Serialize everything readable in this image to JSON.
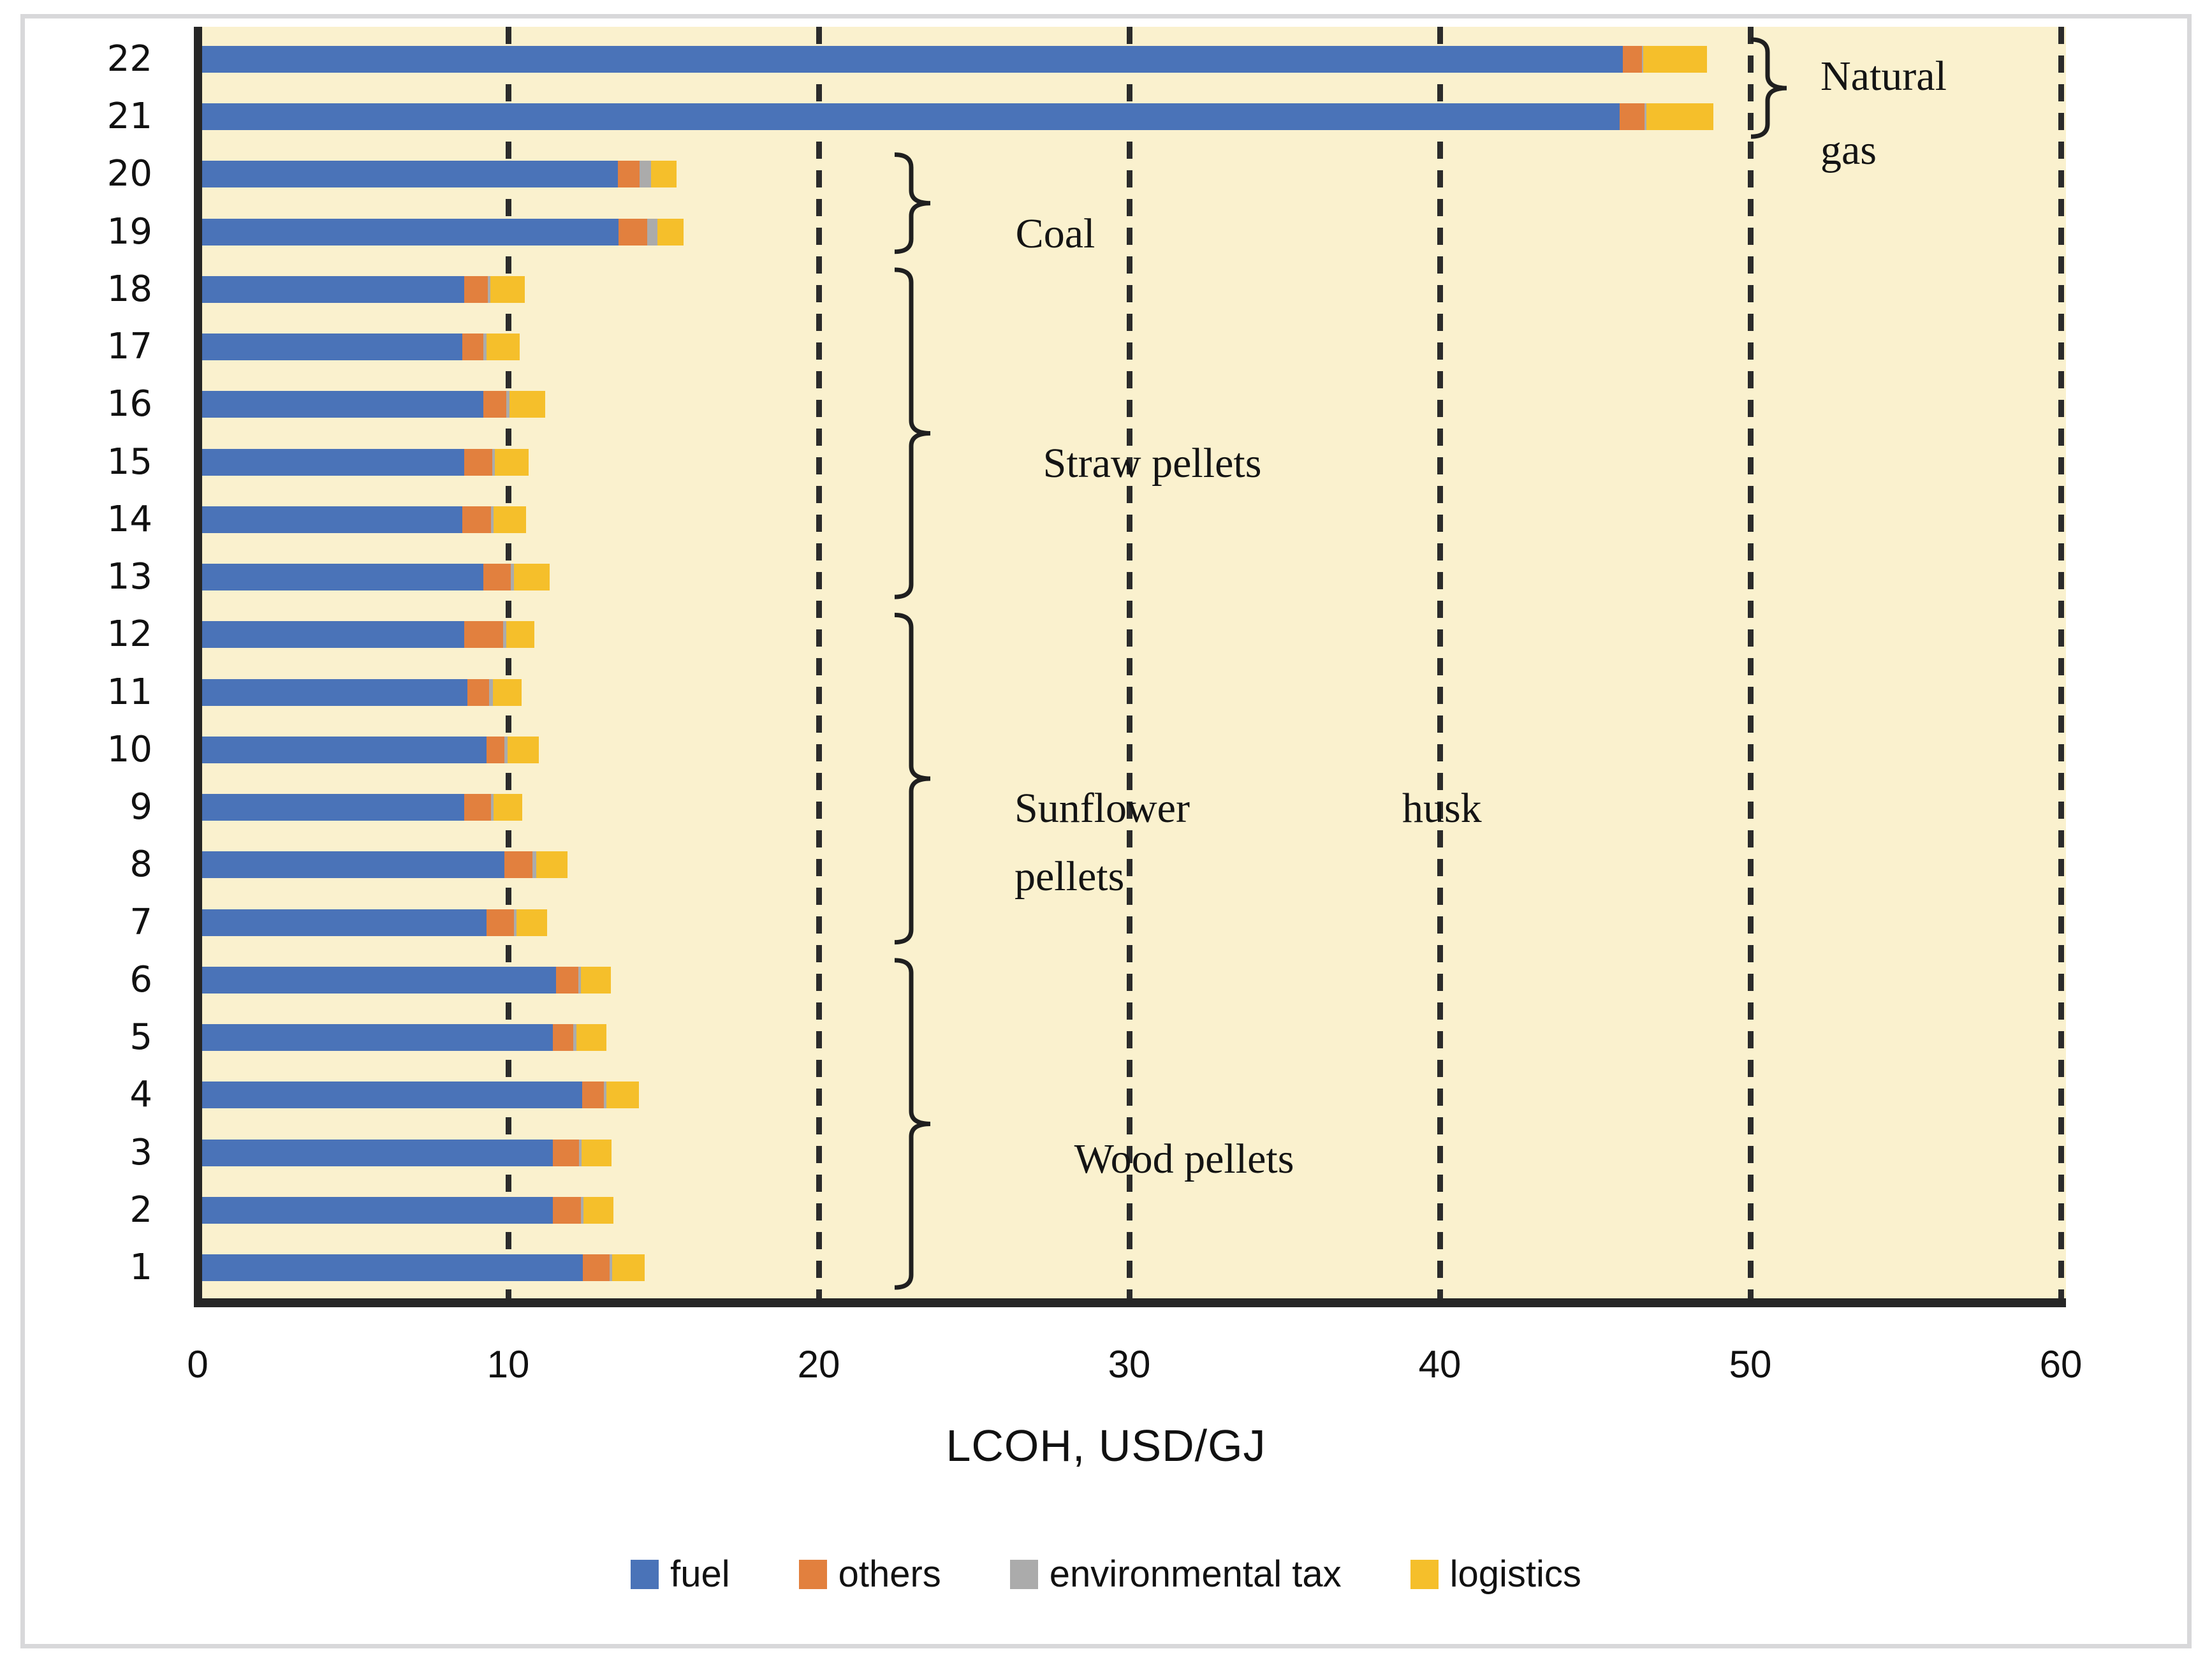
{
  "figure": {
    "background_color": "#ffffff",
    "frame_border_color": "#d8d8da",
    "plot_background_color": "#faf1ce"
  },
  "chart_data": {
    "type": "bar",
    "orientation": "horizontal",
    "stacked": true,
    "title": "",
    "xlabel": "LCOH, USD/GJ",
    "ylabel": "",
    "xlim": [
      0,
      60
    ],
    "xticks": [
      "0",
      "10",
      "20",
      "30",
      "40",
      "50",
      "60"
    ],
    "grid": "vertical dashed lines at every 10 units",
    "legend_position": "bottom",
    "series": [
      {
        "name": "fuel",
        "color": "#4a73b8"
      },
      {
        "name": "others",
        "color": "#e2803e"
      },
      {
        "name": "environmental tax",
        "color": "#ababab"
      },
      {
        "name": "logistics",
        "color": "#f5bf2b"
      }
    ],
    "rows": [
      {
        "label": "22",
        "fuel": 45.9,
        "others": 0.6,
        "environmental_tax": 0.06,
        "logistics": 2.04
      },
      {
        "label": "21",
        "fuel": 45.8,
        "others": 0.8,
        "environmental_tax": 0.06,
        "logistics": 2.14
      },
      {
        "label": "20",
        "fuel": 13.53,
        "others": 0.71,
        "environmental_tax": 0.36,
        "logistics": 0.83
      },
      {
        "label": "19",
        "fuel": 13.55,
        "others": 0.93,
        "environmental_tax": 0.32,
        "logistics": 0.84
      },
      {
        "label": "18",
        "fuel": 8.58,
        "others": 0.76,
        "environmental_tax": 0.08,
        "logistics": 1.12
      },
      {
        "label": "17",
        "fuel": 8.52,
        "others": 0.68,
        "environmental_tax": 0.1,
        "logistics": 1.07
      },
      {
        "label": "16",
        "fuel": 9.2,
        "others": 0.74,
        "environmental_tax": 0.1,
        "logistics": 1.15
      },
      {
        "label": "15",
        "fuel": 8.58,
        "others": 0.9,
        "environmental_tax": 0.09,
        "logistics": 1.09
      },
      {
        "label": "14",
        "fuel": 8.52,
        "others": 0.92,
        "environmental_tax": 0.09,
        "logistics": 1.04
      },
      {
        "label": "13",
        "fuel": 9.2,
        "others": 0.88,
        "environmental_tax": 0.1,
        "logistics": 1.16
      },
      {
        "label": "12",
        "fuel": 8.58,
        "others": 1.26,
        "environmental_tax": 0.1,
        "logistics": 0.91
      },
      {
        "label": "11",
        "fuel": 8.68,
        "others": 0.71,
        "environmental_tax": 0.11,
        "logistics": 0.94
      },
      {
        "label": "10",
        "fuel": 9.31,
        "others": 0.56,
        "environmental_tax": 0.1,
        "logistics": 1.01
      },
      {
        "label": "9",
        "fuel": 8.58,
        "others": 0.86,
        "environmental_tax": 0.09,
        "logistics": 0.92
      },
      {
        "label": "8",
        "fuel": 9.88,
        "others": 0.91,
        "environmental_tax": 0.11,
        "logistics": 1.01
      },
      {
        "label": "7",
        "fuel": 9.31,
        "others": 0.87,
        "environmental_tax": 0.09,
        "logistics": 0.99
      },
      {
        "label": "6",
        "fuel": 11.54,
        "others": 0.71,
        "environmental_tax": 0.1,
        "logistics": 0.96
      },
      {
        "label": "5",
        "fuel": 11.43,
        "others": 0.66,
        "environmental_tax": 0.11,
        "logistics": 0.96
      },
      {
        "label": "4",
        "fuel": 12.39,
        "others": 0.68,
        "environmental_tax": 0.1,
        "logistics": 1.03
      },
      {
        "label": "3",
        "fuel": 11.43,
        "others": 0.85,
        "environmental_tax": 0.09,
        "logistics": 0.96
      },
      {
        "label": "2",
        "fuel": 11.43,
        "others": 0.92,
        "environmental_tax": 0.08,
        "logistics": 0.95
      },
      {
        "label": "1",
        "fuel": 12.4,
        "others": 0.86,
        "environmental_tax": 0.08,
        "logistics": 1.05
      }
    ],
    "groups": [
      {
        "label": "Natural gas",
        "label_parts": [
          "Natural",
          "gas"
        ],
        "rows": [
          "22",
          "21"
        ]
      },
      {
        "label": "Coal",
        "label_parts": [
          "Coal"
        ],
        "rows": [
          "20",
          "19"
        ]
      },
      {
        "label": "Straw pellets",
        "label_parts": [
          "Straw pellets"
        ],
        "rows": [
          "18",
          "17",
          "16",
          "15",
          "14",
          "13"
        ]
      },
      {
        "label": "Sunflower husk pellets",
        "label_parts": [
          "Sunflower",
          "husk",
          "pellets"
        ],
        "rows": [
          "12",
          "11",
          "10",
          "9",
          "8",
          "7"
        ]
      },
      {
        "label": "Wood pellets",
        "label_parts": [
          "Wood pellets"
        ],
        "rows": [
          "6",
          "5",
          "4",
          "3",
          "2",
          "1"
        ]
      }
    ]
  },
  "legend": {
    "items": [
      {
        "label": "fuel",
        "color": "#4a73b8"
      },
      {
        "label": "others",
        "color": "#e2803e"
      },
      {
        "label": "environmental tax",
        "color": "#ababab"
      },
      {
        "label": "logistics",
        "color": "#f5bf2b"
      }
    ]
  }
}
